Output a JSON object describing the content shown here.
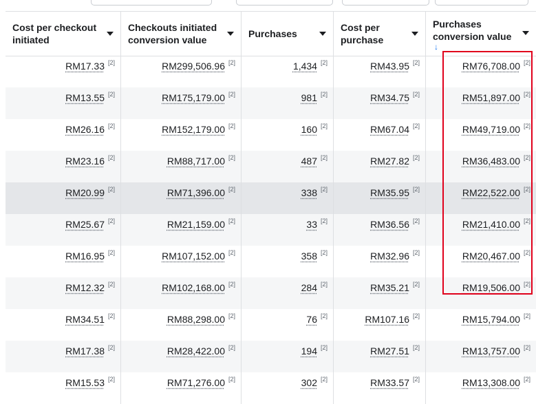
{
  "headers": [
    {
      "label": "Cost per checkout initiated"
    },
    {
      "label": "Checkouts initiated conversion value"
    },
    {
      "label": "Purchases"
    },
    {
      "label": "Cost per purchase"
    },
    {
      "label": "Purchases conversion value"
    }
  ],
  "sort_icon": "arrow-down-icon",
  "footnote": "[2]",
  "rows": [
    {
      "cost_per_checkout": "RM17.33",
      "checkout_value": "RM299,506.96",
      "purchases": "1,434",
      "cost_per_purchase": "RM43.95",
      "purchase_value": "RM76,708.00"
    },
    {
      "cost_per_checkout": "RM13.55",
      "checkout_value": "RM175,179.00",
      "purchases": "981",
      "cost_per_purchase": "RM34.75",
      "purchase_value": "RM51,897.00"
    },
    {
      "cost_per_checkout": "RM26.16",
      "checkout_value": "RM152,179.00",
      "purchases": "160",
      "cost_per_purchase": "RM67.04",
      "purchase_value": "RM49,719.00"
    },
    {
      "cost_per_checkout": "RM23.16",
      "checkout_value": "RM88,717.00",
      "purchases": "487",
      "cost_per_purchase": "RM27.82",
      "purchase_value": "RM36,483.00"
    },
    {
      "cost_per_checkout": "RM20.99",
      "checkout_value": "RM71,396.00",
      "purchases": "338",
      "cost_per_purchase": "RM35.95",
      "purchase_value": "RM22,522.00"
    },
    {
      "cost_per_checkout": "RM25.67",
      "checkout_value": "RM21,159.00",
      "purchases": "33",
      "cost_per_purchase": "RM36.56",
      "purchase_value": "RM21,410.00"
    },
    {
      "cost_per_checkout": "RM16.95",
      "checkout_value": "RM107,152.00",
      "purchases": "358",
      "cost_per_purchase": "RM32.96",
      "purchase_value": "RM20,467.00"
    },
    {
      "cost_per_checkout": "RM12.32",
      "checkout_value": "RM102,168.00",
      "purchases": "284",
      "cost_per_purchase": "RM35.21",
      "purchase_value": "RM19,506.00"
    },
    {
      "cost_per_checkout": "RM34.51",
      "checkout_value": "RM88,298.00",
      "purchases": "76",
      "cost_per_purchase": "RM107.16",
      "purchase_value": "RM15,794.00"
    },
    {
      "cost_per_checkout": "RM17.38",
      "checkout_value": "RM28,422.00",
      "purchases": "194",
      "cost_per_purchase": "RM27.51",
      "purchase_value": "RM13,757.00"
    },
    {
      "cost_per_checkout": "RM15.53",
      "checkout_value": "RM71,276.00",
      "purchases": "302",
      "cost_per_purchase": "RM33.57",
      "purchase_value": "RM13,308.00"
    }
  ],
  "highlight_color": "#e0001b"
}
